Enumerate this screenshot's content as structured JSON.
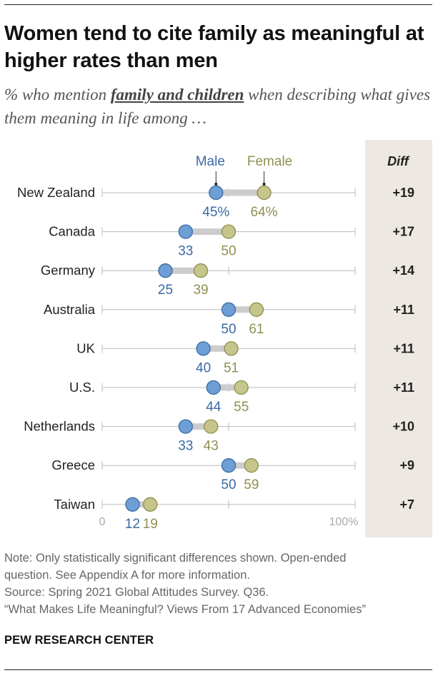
{
  "title": "Women tend to cite family as meaningful at higher rates than men",
  "subtitle": {
    "prefix": "% who mention ",
    "emphasis": "family and children",
    "suffix": " when describing what gives them meaning in life among …"
  },
  "colors": {
    "male": "#6d9ed6",
    "male_stroke": "#3c6aa2",
    "male_text": "#3a6aa5",
    "female": "#c5c58c",
    "female_stroke": "#8e8e4e",
    "female_text": "#8f8f52",
    "connector": "#cccccc",
    "axis": "#bbbbbb"
  },
  "chart_data": {
    "type": "dot-plot",
    "x_range": [
      0,
      100
    ],
    "x_tick_labels": [
      "0",
      "100%"
    ],
    "legend": [
      "Male",
      "Female"
    ],
    "diff_header": "Diff",
    "rows": [
      {
        "country": "New Zealand",
        "male": 45,
        "female": 64,
        "male_label": "45%",
        "female_label": "64%",
        "diff": "+19"
      },
      {
        "country": "Canada",
        "male": 33,
        "female": 50,
        "male_label": "33",
        "female_label": "50",
        "diff": "+17"
      },
      {
        "country": "Germany",
        "male": 25,
        "female": 39,
        "male_label": "25",
        "female_label": "39",
        "diff": "+14"
      },
      {
        "country": "Australia",
        "male": 50,
        "female": 61,
        "male_label": "50",
        "female_label": "61",
        "diff": "+11"
      },
      {
        "country": "UK",
        "male": 40,
        "female": 51,
        "male_label": "40",
        "female_label": "51",
        "diff": "+11"
      },
      {
        "country": "U.S.",
        "male": 44,
        "female": 55,
        "male_label": "44",
        "female_label": "55",
        "diff": "+11"
      },
      {
        "country": "Netherlands",
        "male": 33,
        "female": 43,
        "male_label": "33",
        "female_label": "43",
        "diff": "+10"
      },
      {
        "country": "Greece",
        "male": 50,
        "female": 59,
        "male_label": "50",
        "female_label": "59",
        "diff": "+9"
      },
      {
        "country": "Taiwan",
        "male": 12,
        "female": 19,
        "male_label": "12",
        "female_label": "19",
        "diff": "+7"
      }
    ]
  },
  "notes": [
    "Note: Only statistically significant differences shown. Open-ended",
    "question. See Appendix A for more information.",
    "Source: Spring 2021 Global Attitudes Survey. Q36.",
    "“What Makes Life Meaningful? Views From 17 Advanced Economies”"
  ],
  "brand": "PEW RESEARCH CENTER"
}
